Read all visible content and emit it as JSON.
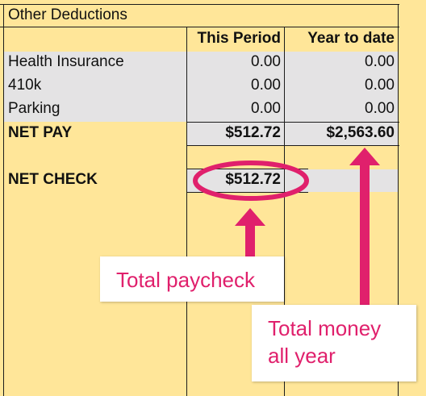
{
  "section_title": "Other Deductions",
  "columns": {
    "this_period": "This Period",
    "year_to_date": "Year to date"
  },
  "deductions": [
    {
      "label": "Health Insurance",
      "this_period": "0.00",
      "year_to_date": "0.00"
    },
    {
      "label": "410k",
      "this_period": "0.00",
      "year_to_date": "0.00"
    },
    {
      "label": "Parking",
      "this_period": "0.00",
      "year_to_date": "0.00"
    }
  ],
  "net_pay": {
    "label": "NET PAY",
    "this_period": "$512.72",
    "year_to_date": "$2,563.60"
  },
  "net_check": {
    "label": "NET CHECK",
    "this_period": "$512.72"
  },
  "annotations": {
    "total_paycheck": "Total paycheck",
    "total_money_line1": "Total money",
    "total_money_line2": "all year",
    "accent_color": "#e0206c"
  },
  "colors": {
    "sheet": "#ffe699",
    "highlight_band": "#e4e3e4",
    "grid": "#1c1c1c"
  }
}
